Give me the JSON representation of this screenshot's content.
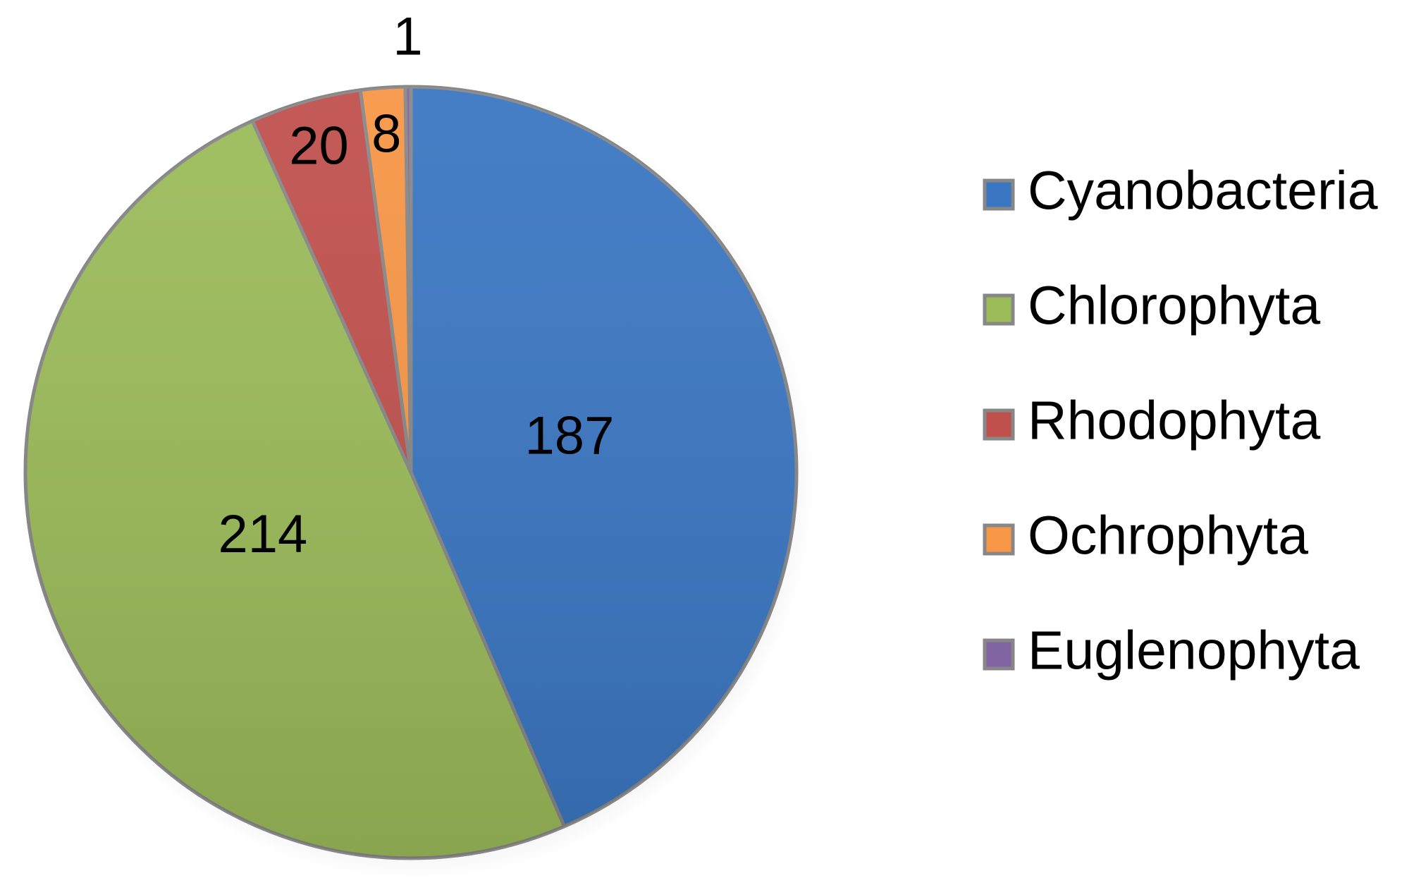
{
  "chart_data": {
    "type": "pie",
    "categories": [
      "Cyanobacteria",
      "Chlorophyta",
      "Rhodophyta",
      "Ochrophyta",
      "Euglenophyta"
    ],
    "values": [
      187,
      214,
      20,
      8,
      1
    ],
    "colors": [
      "#3a76c2",
      "#9bbb59",
      "#c0504d",
      "#f79646",
      "#8064a2"
    ],
    "legend": "right"
  }
}
